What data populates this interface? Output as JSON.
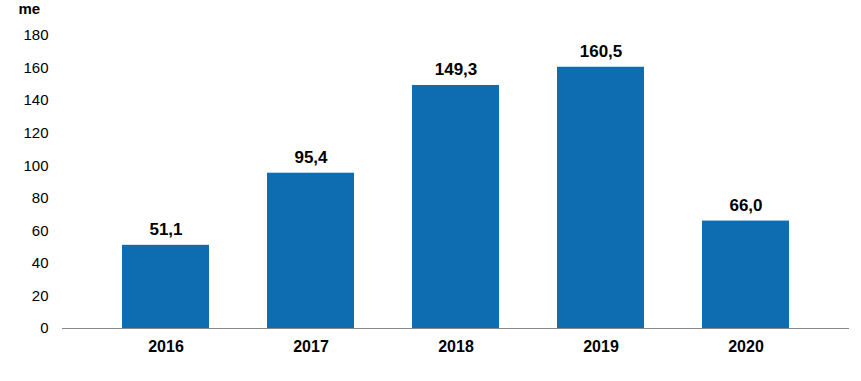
{
  "chart_data": {
    "type": "bar",
    "y_label": "me",
    "categories": [
      "2016",
      "2017",
      "2018",
      "2019",
      "2020"
    ],
    "values": [
      51.1,
      95.4,
      149.3,
      160.5,
      66.0
    ],
    "value_labels": [
      "51,1",
      "95,4",
      "149,3",
      "160,5",
      "66,0"
    ],
    "data_labels": true,
    "color": "#0e6cb0",
    "ylim": [
      0,
      180
    ],
    "yticks": [
      0,
      20,
      40,
      60,
      80,
      100,
      120,
      140,
      160,
      180
    ],
    "grid": false
  }
}
